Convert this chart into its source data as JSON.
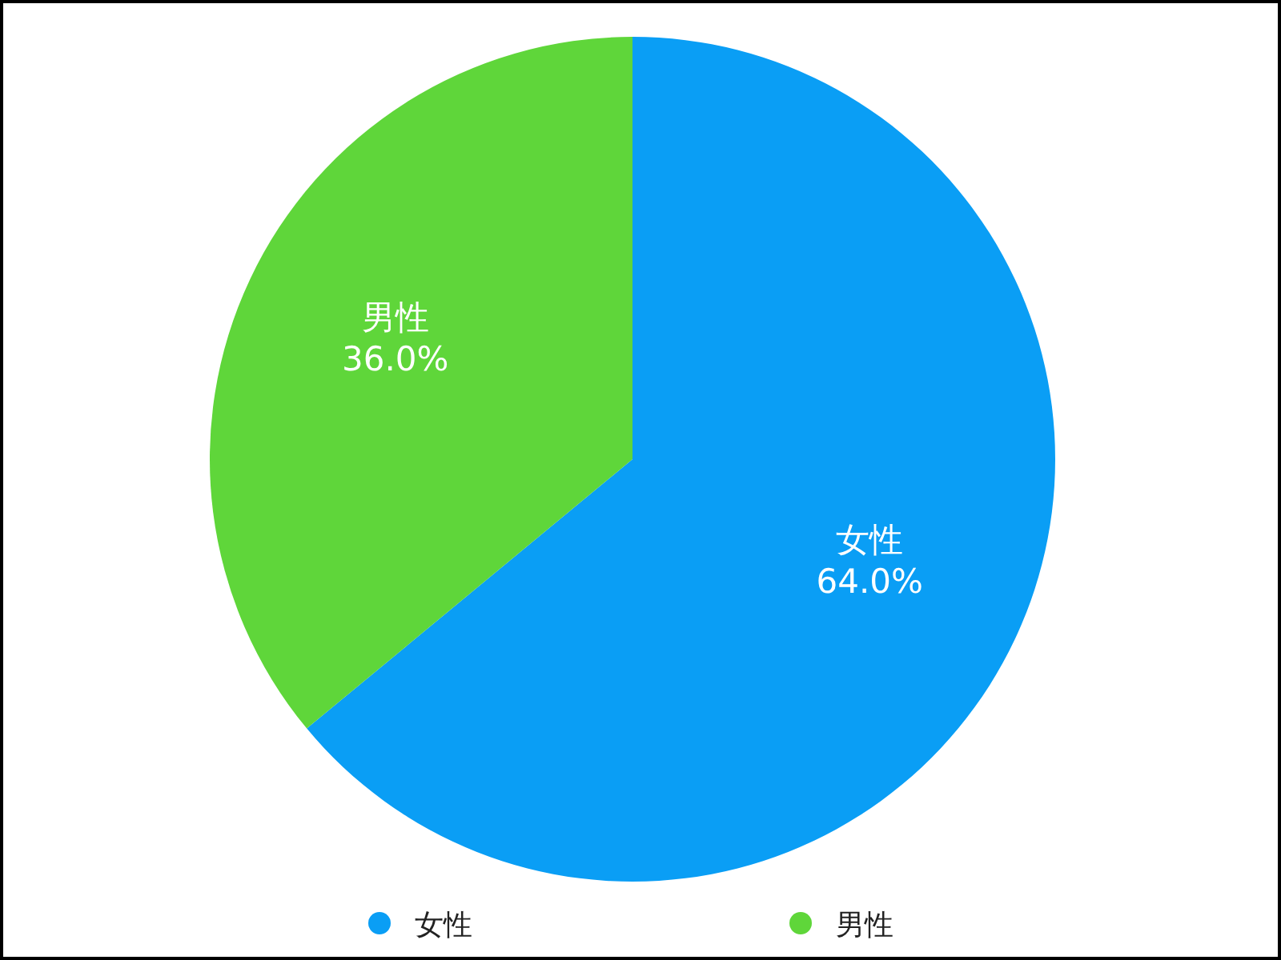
{
  "chart_data": {
    "type": "pie",
    "categories": [
      "女性",
      "男性"
    ],
    "values": [
      64.0,
      36.0
    ],
    "colors": [
      "#0a9ef5",
      "#5fd63a"
    ],
    "value_labels": [
      "64.0%",
      "36.0%"
    ],
    "legend": "bottom"
  }
}
